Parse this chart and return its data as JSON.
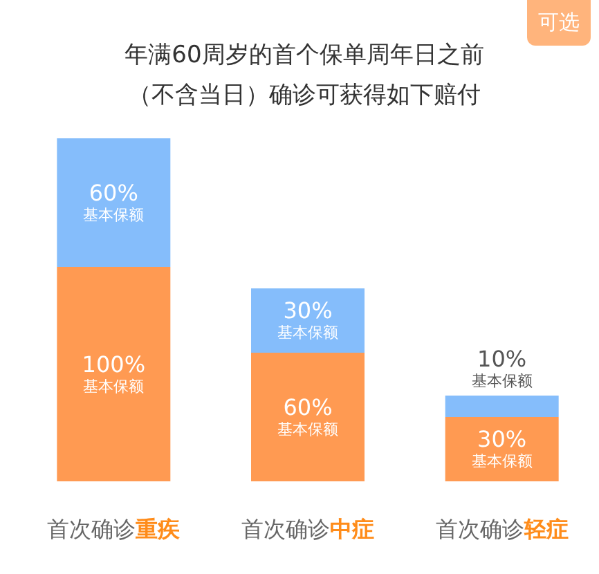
{
  "chart_data": {
    "type": "bar",
    "stacked": true,
    "title": "年满60周岁的首个保单周年日之前（不含当日）确诊可获得如下赔付",
    "categories": [
      "首次确诊重疾",
      "首次确诊中症",
      "首次确诊轻症"
    ],
    "series": [
      {
        "color": "#ff9a52",
        "values": [
          100,
          60,
          30
        ],
        "value_labels": [
          "100%\n基本保额",
          "60%\n基本保额",
          "30%\n基本保额"
        ]
      },
      {
        "color": "#85bdfb",
        "values": [
          60,
          30,
          10
        ],
        "value_labels": [
          "60%\n基本保额",
          "30%\n基本保额",
          "10%\n基本保额"
        ]
      }
    ],
    "annotations": [
      "可选"
    ]
  }
}
